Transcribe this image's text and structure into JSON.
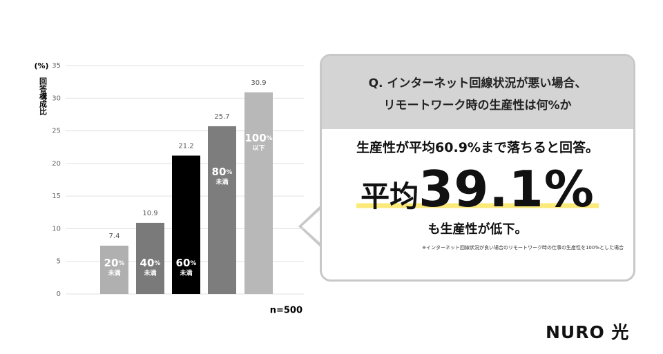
{
  "chart_data": {
    "type": "bar",
    "y_axis_unit": "(%)",
    "y_axis_label": "回答構成比",
    "categories": [
      {
        "num": "20",
        "unit": "%",
        "sub": "未満"
      },
      {
        "num": "40",
        "unit": "%",
        "sub": "未満"
      },
      {
        "num": "60",
        "unit": "%",
        "sub": "未満"
      },
      {
        "num": "80",
        "unit": "%",
        "sub": "未満"
      },
      {
        "num": "100",
        "unit": "%",
        "sub": "以下"
      }
    ],
    "values": [
      7.4,
      10.9,
      21.2,
      25.7,
      30.9
    ],
    "colors": [
      "#b0b0b0",
      "#7a7a7a",
      "#000000",
      "#7d7d7d",
      "#b8b8b8"
    ],
    "ylim": [
      0,
      35
    ],
    "yticks": [
      0,
      5,
      10,
      15,
      20,
      25,
      30,
      35
    ],
    "grid": true,
    "annotation": "n=500"
  },
  "callout": {
    "question": [
      "Q. インターネット回線状況が悪い場合、",
      "リモートワーク時の生産性は何%か"
    ],
    "lead": "生産性が平均60.9%まで落ちると回答。",
    "headline_prefix": "平均",
    "headline_value": "39.1%",
    "tail": "も生産性が低下。",
    "footnote": "※インターネット回線状況が良い場合のリモートワーク時の仕事の生産性を100%とした場合"
  },
  "logo": "NURO 光"
}
